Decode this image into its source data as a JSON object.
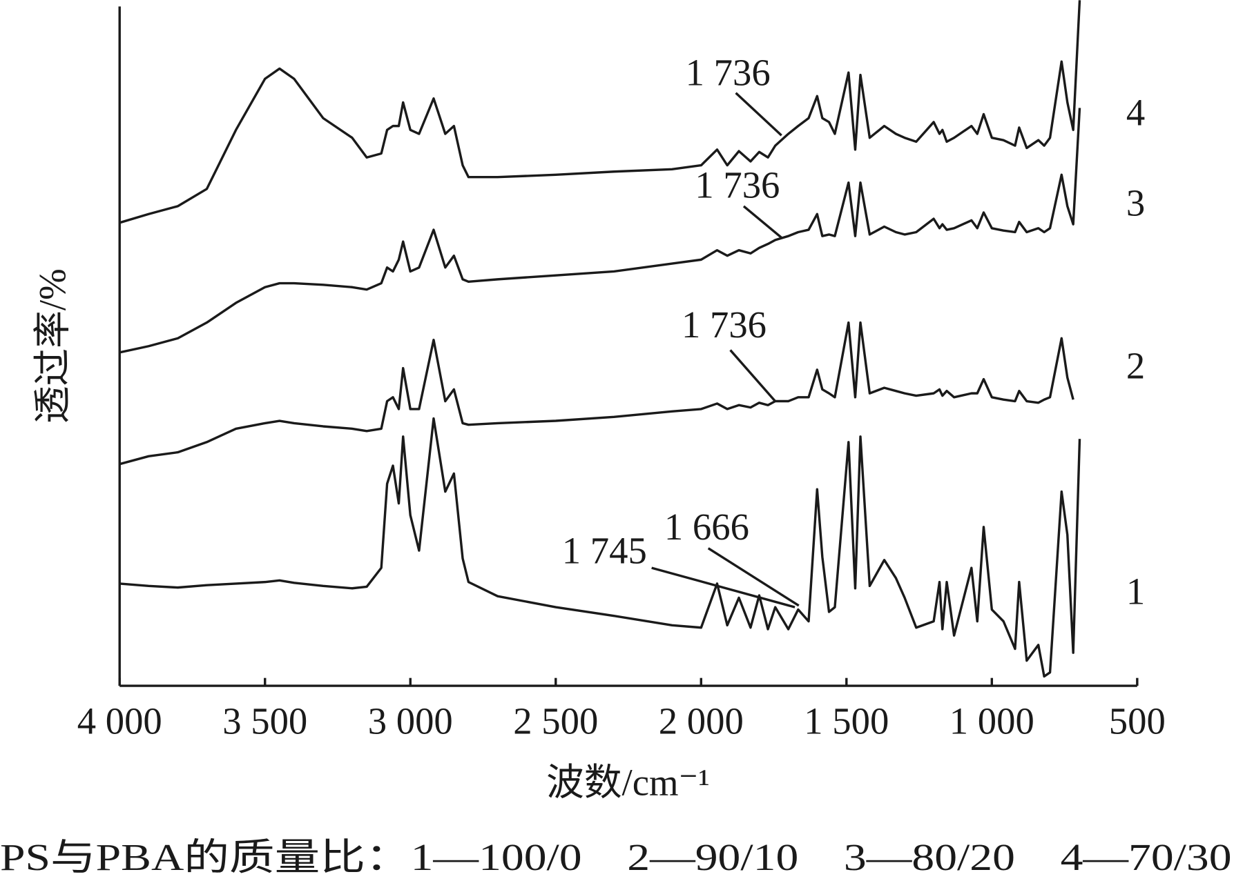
{
  "chart_data": {
    "type": "line",
    "xlabel": "波数/cm⁻¹",
    "ylabel": "透过率/%",
    "caption": "PS与PBA的质量比：1—100/0　2—90/10　3—80/20　4—70/30",
    "xlim": [
      4000,
      500
    ],
    "ylim": [
      0,
      872
    ],
    "xticks": [
      {
        "value": 4000,
        "label": "4 000"
      },
      {
        "value": 3500,
        "label": "3 500"
      },
      {
        "value": 3000,
        "label": "3 000"
      },
      {
        "value": 2500,
        "label": "2 500"
      },
      {
        "value": 2000,
        "label": "2 000"
      },
      {
        "value": 1500,
        "label": "1 500"
      },
      {
        "value": 1000,
        "label": "1 000"
      },
      500
    ],
    "x": [
      4000,
      3900,
      3800,
      3700,
      3600,
      3500,
      3450,
      3400,
      3300,
      3200,
      3150,
      3100,
      3080,
      3060,
      3040,
      3025,
      3000,
      2970,
      2920,
      2880,
      2850,
      2820,
      2800,
      2700,
      2500,
      2300,
      2100,
      2000,
      1945,
      1910,
      1870,
      1830,
      1800,
      1770,
      1745,
      1700,
      1666,
      1630,
      1601,
      1583,
      1560,
      1540,
      1493,
      1470,
      1452,
      1420,
      1370,
      1330,
      1300,
      1260,
      1200,
      1180,
      1170,
      1155,
      1130,
      1070,
      1050,
      1028,
      1000,
      960,
      920,
      906,
      880,
      840,
      820,
      800,
      760,
      740,
      720,
      698
    ],
    "series": [
      {
        "name": "1",
        "color": "#1a1a1a",
        "values": [
          130,
          127,
          125,
          128,
          130,
          132,
          134,
          131,
          127,
          124,
          126,
          150,
          257,
          280,
          232,
          317,
          217,
          172,
          340,
          247,
          270,
          162,
          132,
          114,
          100,
          89,
          77,
          74,
          130,
          77,
          112,
          74,
          115,
          72,
          100,
          72,
          97,
          82,
          250,
          164,
          94,
          100,
          310,
          124,
          317,
          127,
          160,
          137,
          112,
          74,
          82,
          132,
          72,
          132,
          64,
          150,
          82,
          202,
          97,
          82,
          47,
          132,
          32,
          52,
          12,
          17,
          247,
          192,
          42,
          314
        ]
      },
      {
        "name": "2",
        "color": "#1a1a1a",
        "values": [
          282,
          292,
          297,
          310,
          327,
          334,
          337,
          334,
          330,
          327,
          324,
          327,
          362,
          367,
          352,
          404,
          352,
          352,
          440,
          362,
          377,
          334,
          332,
          334,
          337,
          342,
          349,
          352,
          359,
          352,
          357,
          354,
          360,
          357,
          362,
          362,
          367,
          367,
          402,
          377,
          372,
          367,
          462,
          367,
          462,
          372,
          379,
          375,
          372,
          369,
          372,
          377,
          369,
          375,
          367,
          372,
          372,
          390,
          367,
          364,
          362,
          375,
          362,
          360,
          364,
          367,
          442,
          392,
          364,
          null
        ]
      },
      {
        "name": "3",
        "color": "#1a1a1a",
        "values": [
          424,
          432,
          442,
          462,
          487,
          507,
          512,
          512,
          510,
          507,
          504,
          512,
          532,
          527,
          542,
          565,
          527,
          532,
          580,
          532,
          547,
          517,
          514,
          517,
          522,
          527,
          537,
          542,
          554,
          547,
          554,
          550,
          557,
          562,
          567,
          572,
          577,
          580,
          600,
          572,
          574,
          572,
          640,
          572,
          640,
          574,
          584,
          577,
          574,
          577,
          594,
          582,
          587,
          580,
          582,
          592,
          582,
          602,
          582,
          579,
          577,
          590,
          577,
          582,
          577,
          582,
          650,
          610,
          587,
          735
        ]
      },
      {
        "name": "4",
        "color": "#1a1a1a",
        "values": [
          589,
          600,
          610,
          632,
          707,
          772,
          785,
          772,
          722,
          697,
          672,
          677,
          707,
          712,
          712,
          742,
          707,
          702,
          747,
          702,
          712,
          662,
          647,
          647,
          650,
          654,
          657,
          662,
          682,
          662,
          680,
          667,
          679,
          672,
          687,
          702,
          712,
          722,
          750,
          722,
          717,
          702,
          780,
          682,
          777,
          697,
          712,
          702,
          697,
          692,
          717,
          702,
          707,
          692,
          697,
          712,
          702,
          727,
          697,
          694,
          687,
          710,
          684,
          694,
          687,
          697,
          794,
          742,
          707,
          872
        ]
      }
    ],
    "annotations": [
      {
        "text": "1 736"
      },
      {
        "text": "1 736"
      },
      {
        "text": "1 736"
      },
      {
        "text": "1 745"
      },
      {
        "text": "1 666"
      }
    ]
  }
}
